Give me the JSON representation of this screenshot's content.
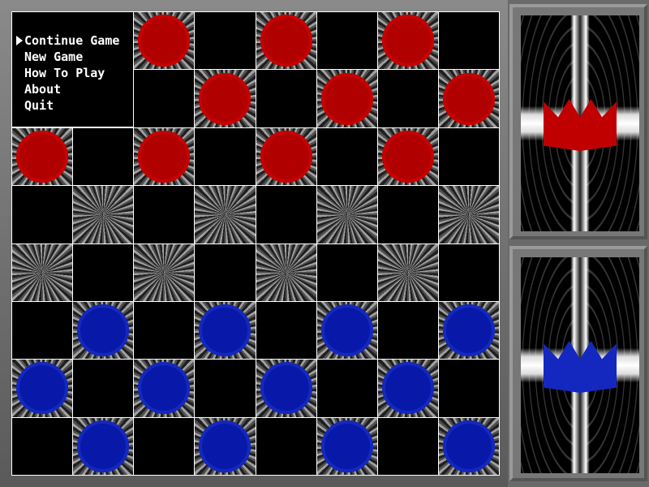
{
  "menu": {
    "items": [
      {
        "label": "Continue Game",
        "selected": true
      },
      {
        "label": "New Game"
      },
      {
        "label": "How To Play"
      },
      {
        "label": "About"
      },
      {
        "label": "Quit"
      }
    ]
  },
  "board": {
    "rows": [
      "--r-r-r-",
      "---r-r-r",
      "r-r-r-r-",
      "--------",
      "--------",
      "-b-b-b-b",
      "b-b-b-b-",
      "-b-b-b-b"
    ]
  },
  "players": [
    {
      "piece": "red-crown",
      "color": "#c00000"
    },
    {
      "piece": "blue-crown",
      "color": "#1428c0"
    }
  ]
}
